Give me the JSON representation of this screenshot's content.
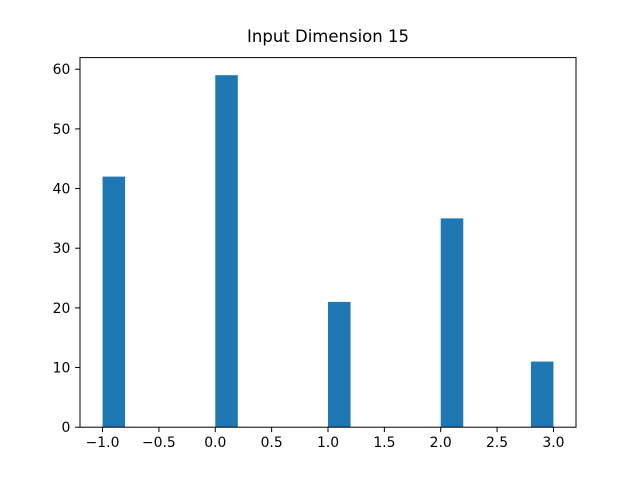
{
  "chart_data": {
    "type": "bar",
    "subtype": "histogram",
    "title": "Input Dimension 15",
    "xlabel": "",
    "ylabel": "",
    "bar_color": "#1f77b4",
    "axis_color": "#000000",
    "background_color": "#ffffff",
    "grid": false,
    "legend": false,
    "xlim": [
      -1.2,
      3.2
    ],
    "ylim": [
      0,
      61.95
    ],
    "bins": [
      {
        "x_left": -1.0,
        "x_right": -0.8,
        "count": 42
      },
      {
        "x_left": 0.0,
        "x_right": 0.2,
        "count": 59
      },
      {
        "x_left": 1.0,
        "x_right": 1.2,
        "count": 21
      },
      {
        "x_left": 2.0,
        "x_right": 2.2,
        "count": 35
      },
      {
        "x_left": 2.8,
        "x_right": 3.0,
        "count": 11
      }
    ],
    "xticks": [
      {
        "value": -1.0,
        "label": "−1.0"
      },
      {
        "value": -0.5,
        "label": "−0.5"
      },
      {
        "value": 0.0,
        "label": "0.0"
      },
      {
        "value": 0.5,
        "label": "0.5"
      },
      {
        "value": 1.0,
        "label": "1.0"
      },
      {
        "value": 1.5,
        "label": "1.5"
      },
      {
        "value": 2.0,
        "label": "2.0"
      },
      {
        "value": 2.5,
        "label": "2.5"
      },
      {
        "value": 3.0,
        "label": "3.0"
      }
    ],
    "yticks": [
      {
        "value": 0,
        "label": "0"
      },
      {
        "value": 10,
        "label": "10"
      },
      {
        "value": 20,
        "label": "20"
      },
      {
        "value": 30,
        "label": "30"
      },
      {
        "value": 40,
        "label": "40"
      },
      {
        "value": 50,
        "label": "50"
      },
      {
        "value": 60,
        "label": "60"
      }
    ]
  }
}
